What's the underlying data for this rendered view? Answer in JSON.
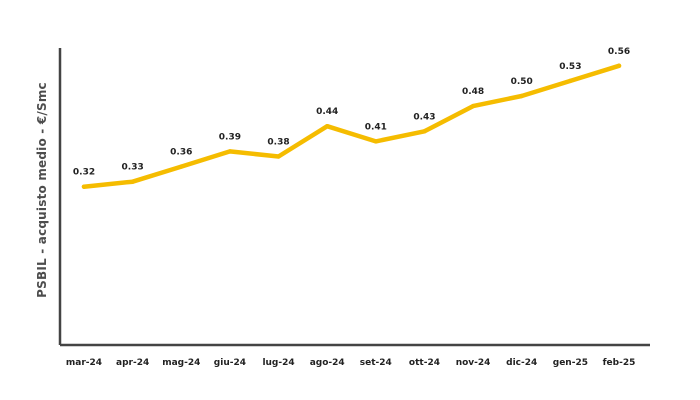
{
  "chart_data": {
    "type": "line",
    "title": "",
    "xlabel": "",
    "ylabel": "PSBIL - acquisto medio - €/Smc",
    "categories": [
      "mar-24",
      "apr-24",
      "mag-24",
      "giu-24",
      "lug-24",
      "ago-24",
      "set-24",
      "ott-24",
      "nov-24",
      "dic-24",
      "gen-25",
      "feb-25"
    ],
    "series": [
      {
        "values": [
          0.32,
          0.33,
          0.36,
          0.39,
          0.38,
          0.44,
          0.41,
          0.43,
          0.48,
          0.5,
          0.53,
          0.56
        ],
        "data_labels": [
          "0.32",
          "0.33",
          "0.36",
          "0.39",
          "0.38",
          "0.44",
          "0.41",
          "0.43",
          "0.48",
          "0.50",
          "0.53",
          "0.56"
        ],
        "color": "#F5BC00"
      }
    ],
    "ylim": [
      0,
      0.6
    ],
    "grid": false,
    "legend": "none",
    "axis_color": "#444444",
    "text_color": "#222222"
  }
}
